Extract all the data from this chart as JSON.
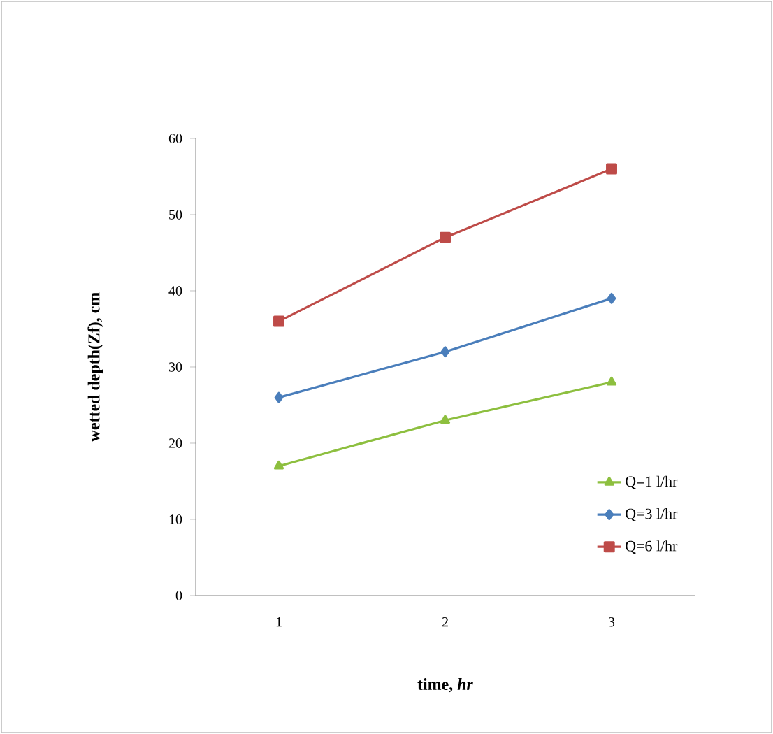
{
  "chart_data": {
    "type": "line",
    "xlabel": "time, *hr*",
    "ylabel": "wetted depth(Zf), cm",
    "categories": [
      "1",
      "2",
      "3"
    ],
    "ylim": [
      0,
      60
    ],
    "yticks": [
      0,
      10,
      20,
      30,
      40,
      50,
      60
    ],
    "grid": false,
    "legend": "bottom right",
    "series": [
      {
        "name": "Q=1 l/hr",
        "color": "#8dbf3f",
        "marker": "triangle",
        "values": [
          17,
          23,
          28
        ]
      },
      {
        "name": "Q=3 l/hr",
        "color": "#4a7ebb",
        "marker": "diamond",
        "values": [
          26,
          32,
          39
        ]
      },
      {
        "name": "Q=6 l/hr",
        "color": "#be4b48",
        "marker": "square",
        "values": [
          36,
          47,
          56
        ]
      }
    ]
  }
}
